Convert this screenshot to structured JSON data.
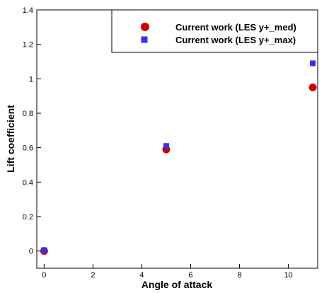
{
  "chart_data": {
    "type": "scatter",
    "xlabel": "Angle of attack",
    "ylabel": "Lift coefficient",
    "xlim": [
      -0.3,
      11.2
    ],
    "ylim": [
      -0.1,
      1.4
    ],
    "xticks": [
      0,
      2,
      4,
      6,
      8,
      10
    ],
    "yticks": [
      0,
      0.2,
      0.4,
      0.6,
      0.8,
      1,
      1.2,
      1.4
    ],
    "xtick_labels": [
      "0",
      "2",
      "4",
      "6",
      "8",
      "10"
    ],
    "ytick_labels": [
      "0",
      "0.2",
      "0.4",
      "0.6",
      "0.8",
      "1",
      "1.2",
      "1.4"
    ],
    "grid": false,
    "legend_position": "top-right",
    "series": [
      {
        "name": "Current work (LES y+_med)",
        "marker": "circle",
        "color": "#cc0000",
        "x": [
          0,
          5,
          11
        ],
        "y": [
          0.0,
          0.59,
          0.95
        ]
      },
      {
        "name": "Current work (LES y+_max)",
        "marker": "square",
        "color": "#3333ee",
        "x": [
          0,
          5,
          11
        ],
        "y": [
          0.005,
          0.61,
          1.09
        ]
      }
    ]
  }
}
